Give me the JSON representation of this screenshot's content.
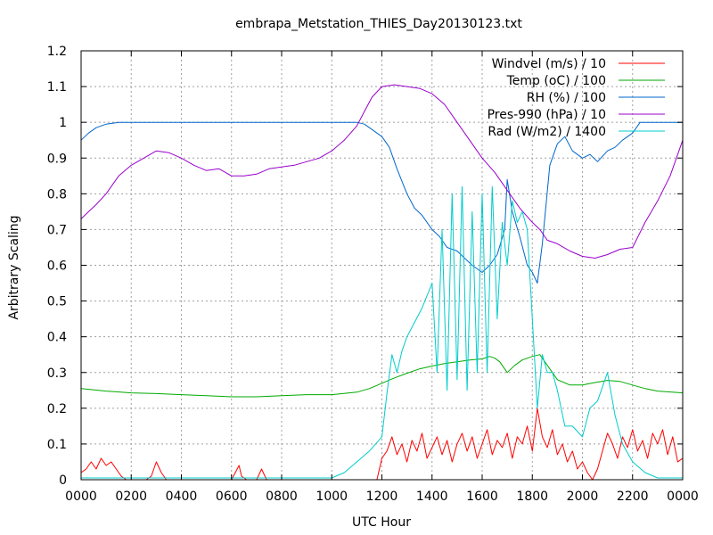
{
  "chart_data": {
    "type": "line",
    "title": "embrapa_Metstation_THIES_Day20130123.txt",
    "xlabel": "UTC Hour",
    "ylabel": "Arbitrary Scaling",
    "xlim": [
      0,
      24
    ],
    "ylim": [
      0,
      1.2
    ],
    "grid": true,
    "legend_position": "top-right",
    "x_ticks": [
      {
        "value": 0,
        "label": "0000"
      },
      {
        "value": 2,
        "label": "0200"
      },
      {
        "value": 4,
        "label": "0400"
      },
      {
        "value": 6,
        "label": "0600"
      },
      {
        "value": 8,
        "label": "0800"
      },
      {
        "value": 10,
        "label": "1000"
      },
      {
        "value": 12,
        "label": "1200"
      },
      {
        "value": 14,
        "label": "1400"
      },
      {
        "value": 16,
        "label": "1600"
      },
      {
        "value": 18,
        "label": "1800"
      },
      {
        "value": 20,
        "label": "2000"
      },
      {
        "value": 22,
        "label": "2200"
      },
      {
        "value": 24,
        "label": "0000"
      }
    ],
    "y_ticks": [
      {
        "value": 0,
        "label": "0"
      },
      {
        "value": 0.1,
        "label": "0.1"
      },
      {
        "value": 0.2,
        "label": "0.2"
      },
      {
        "value": 0.3,
        "label": "0.3"
      },
      {
        "value": 0.4,
        "label": "0.4"
      },
      {
        "value": 0.5,
        "label": "0.5"
      },
      {
        "value": 0.6,
        "label": "0.6"
      },
      {
        "value": 0.7,
        "label": "0.7"
      },
      {
        "value": 0.8,
        "label": "0.8"
      },
      {
        "value": 0.9,
        "label": "0.9"
      },
      {
        "value": 1.0,
        "label": "1"
      },
      {
        "value": 1.1,
        "label": "1.1"
      },
      {
        "value": 1.2,
        "label": "1.2"
      }
    ],
    "series": [
      {
        "name": "Windvel (m/s) / 10",
        "color": "#ff0000",
        "x": [
          0,
          0.2,
          0.4,
          0.6,
          0.8,
          1.0,
          1.2,
          1.4,
          1.6,
          1.8,
          2.0,
          2.2,
          2.4,
          2.6,
          2.8,
          3.0,
          3.2,
          3.4,
          3.6,
          3.8,
          4,
          5,
          6,
          6.3,
          6.4,
          6.6,
          7,
          7.2,
          7.4,
          7.6,
          8,
          9,
          10,
          11,
          11.8,
          12,
          12.2,
          12.4,
          12.6,
          12.8,
          13,
          13.2,
          13.4,
          13.6,
          13.8,
          14,
          14.2,
          14.4,
          14.6,
          14.8,
          15,
          15.2,
          15.4,
          15.6,
          15.8,
          16,
          16.2,
          16.4,
          16.6,
          16.8,
          17,
          17.2,
          17.4,
          17.6,
          17.8,
          18,
          18.2,
          18.4,
          18.6,
          18.8,
          19,
          19.2,
          19.4,
          19.6,
          19.8,
          20,
          20.2,
          20.4,
          20.6,
          20.8,
          21,
          21.2,
          21.4,
          21.6,
          21.8,
          22,
          22.2,
          22.4,
          22.6,
          22.8,
          23,
          23.2,
          23.4,
          23.6,
          23.8,
          24
        ],
        "y": [
          0.02,
          0.03,
          0.05,
          0.03,
          0.06,
          0.04,
          0.05,
          0.03,
          0.01,
          0,
          0,
          0,
          0,
          0,
          0.01,
          0.05,
          0.02,
          0,
          0,
          0,
          0,
          0,
          0,
          0.04,
          0.01,
          0,
          0,
          0.03,
          0,
          0,
          0,
          0,
          0,
          0,
          0,
          0.06,
          0.08,
          0.12,
          0.07,
          0.1,
          0.05,
          0.11,
          0.08,
          0.13,
          0.06,
          0.09,
          0.12,
          0.07,
          0.11,
          0.05,
          0.1,
          0.13,
          0.08,
          0.12,
          0.06,
          0.1,
          0.14,
          0.07,
          0.11,
          0.09,
          0.13,
          0.06,
          0.12,
          0.1,
          0.15,
          0.08,
          0.2,
          0.12,
          0.09,
          0.14,
          0.07,
          0.1,
          0.05,
          0.08,
          0.03,
          0.05,
          0.02,
          0,
          0.03,
          0.08,
          0.13,
          0.1,
          0.06,
          0.12,
          0.09,
          0.14,
          0.08,
          0.11,
          0.06,
          0.13,
          0.1,
          0.14,
          0.07,
          0.12,
          0.05,
          0.06
        ]
      },
      {
        "name": "Temp (oC) / 100",
        "color": "#00aa00",
        "x": [
          0,
          1,
          2,
          3,
          4,
          5,
          6,
          7,
          8,
          9,
          10,
          11,
          11.5,
          12,
          12.5,
          13,
          13.5,
          14,
          14.5,
          15,
          15.5,
          16,
          16.3,
          16.5,
          16.7,
          17,
          17.3,
          17.6,
          18,
          18.3,
          18.6,
          19,
          19.5,
          20,
          20.5,
          21,
          21.5,
          22,
          22.5,
          23,
          24
        ],
        "y": [
          0.255,
          0.248,
          0.243,
          0.241,
          0.238,
          0.235,
          0.232,
          0.232,
          0.235,
          0.238,
          0.238,
          0.245,
          0.255,
          0.27,
          0.285,
          0.298,
          0.31,
          0.318,
          0.325,
          0.33,
          0.335,
          0.338,
          0.345,
          0.34,
          0.33,
          0.3,
          0.32,
          0.335,
          0.345,
          0.35,
          0.32,
          0.28,
          0.265,
          0.265,
          0.272,
          0.278,
          0.275,
          0.265,
          0.255,
          0.248,
          0.243
        ]
      },
      {
        "name": "RH (%) / 100",
        "color": "#0066cc",
        "x": [
          0,
          0.3,
          0.6,
          1,
          1.5,
          2,
          3,
          4,
          5,
          6,
          7,
          8,
          9,
          10,
          11,
          11.3,
          11.6,
          12,
          12.3,
          12.6,
          13,
          13.3,
          13.6,
          14,
          14.3,
          14.6,
          15,
          15.3,
          15.6,
          16,
          16.3,
          16.6,
          16.9,
          17,
          17.2,
          17.5,
          17.8,
          18,
          18.2,
          18.4,
          18.7,
          19,
          19.3,
          19.6,
          20,
          20.3,
          20.6,
          21,
          21.3,
          21.6,
          22,
          22.3,
          22.6,
          23,
          23.5,
          24
        ],
        "y": [
          0.95,
          0.97,
          0.985,
          0.995,
          1.0,
          1.0,
          1.0,
          1.0,
          1.0,
          1.0,
          1.0,
          1.0,
          1.0,
          1.0,
          1.0,
          0.995,
          0.98,
          0.96,
          0.93,
          0.87,
          0.8,
          0.76,
          0.74,
          0.7,
          0.68,
          0.65,
          0.64,
          0.62,
          0.6,
          0.58,
          0.6,
          0.63,
          0.7,
          0.84,
          0.75,
          0.68,
          0.6,
          0.58,
          0.55,
          0.66,
          0.88,
          0.94,
          0.96,
          0.92,
          0.9,
          0.91,
          0.89,
          0.92,
          0.93,
          0.95,
          0.97,
          1.0,
          1.0,
          1.0,
          1.0,
          1.0
        ]
      },
      {
        "name": "Pres-990 (hPa) / 10",
        "color": "#9900cc",
        "x": [
          0,
          0.3,
          0.6,
          1,
          1.5,
          2,
          2.5,
          3,
          3.5,
          4,
          4.5,
          5,
          5.5,
          6,
          6.5,
          7,
          7.5,
          8,
          8.5,
          9,
          9.5,
          10,
          10.5,
          11,
          11.3,
          11.6,
          12,
          12.5,
          13,
          13.5,
          14,
          14.5,
          15,
          15.5,
          16,
          16.5,
          17,
          17.5,
          18,
          18.3,
          18.6,
          19,
          19.5,
          20,
          20.5,
          21,
          21.5,
          22,
          22.5,
          23,
          23.5,
          24
        ],
        "y": [
          0.73,
          0.75,
          0.77,
          0.8,
          0.85,
          0.88,
          0.9,
          0.92,
          0.915,
          0.9,
          0.88,
          0.865,
          0.87,
          0.85,
          0.85,
          0.855,
          0.87,
          0.875,
          0.88,
          0.89,
          0.9,
          0.92,
          0.95,
          0.99,
          1.03,
          1.07,
          1.1,
          1.105,
          1.1,
          1.095,
          1.08,
          1.05,
          1.0,
          0.95,
          0.9,
          0.86,
          0.81,
          0.76,
          0.72,
          0.7,
          0.67,
          0.66,
          0.64,
          0.625,
          0.62,
          0.63,
          0.645,
          0.65,
          0.72,
          0.78,
          0.85,
          0.95
        ]
      },
      {
        "name": "Rad (W/m2) / 1400",
        "color": "#00cccc",
        "x": [
          0,
          1,
          2,
          3,
          4,
          5,
          6,
          7,
          8,
          9,
          10,
          10.5,
          11,
          11.5,
          12,
          12.2,
          12.4,
          12.6,
          12.8,
          13,
          13.3,
          13.6,
          14,
          14.2,
          14.4,
          14.6,
          14.8,
          15,
          15.2,
          15.4,
          15.6,
          15.8,
          16,
          16.2,
          16.4,
          16.6,
          16.8,
          17,
          17.2,
          17.4,
          17.6,
          17.8,
          18,
          18.2,
          18.4,
          18.6,
          18.8,
          19,
          19.3,
          19.6,
          20,
          20.3,
          20.6,
          21,
          21.3,
          21.6,
          22,
          22.5,
          23,
          24
        ],
        "y": [
          0.005,
          0.005,
          0.005,
          0.005,
          0.005,
          0.005,
          0.005,
          0.005,
          0.005,
          0.005,
          0.005,
          0.02,
          0.05,
          0.08,
          0.12,
          0.24,
          0.35,
          0.3,
          0.36,
          0.4,
          0.44,
          0.48,
          0.55,
          0.3,
          0.7,
          0.25,
          0.8,
          0.28,
          0.82,
          0.25,
          0.75,
          0.3,
          0.8,
          0.3,
          0.82,
          0.45,
          0.72,
          0.6,
          0.78,
          0.72,
          0.75,
          0.7,
          0.45,
          0.2,
          0.35,
          0.3,
          0.3,
          0.25,
          0.15,
          0.15,
          0.12,
          0.2,
          0.22,
          0.3,
          0.18,
          0.1,
          0.05,
          0.02,
          0.005,
          0.005
        ]
      }
    ]
  }
}
